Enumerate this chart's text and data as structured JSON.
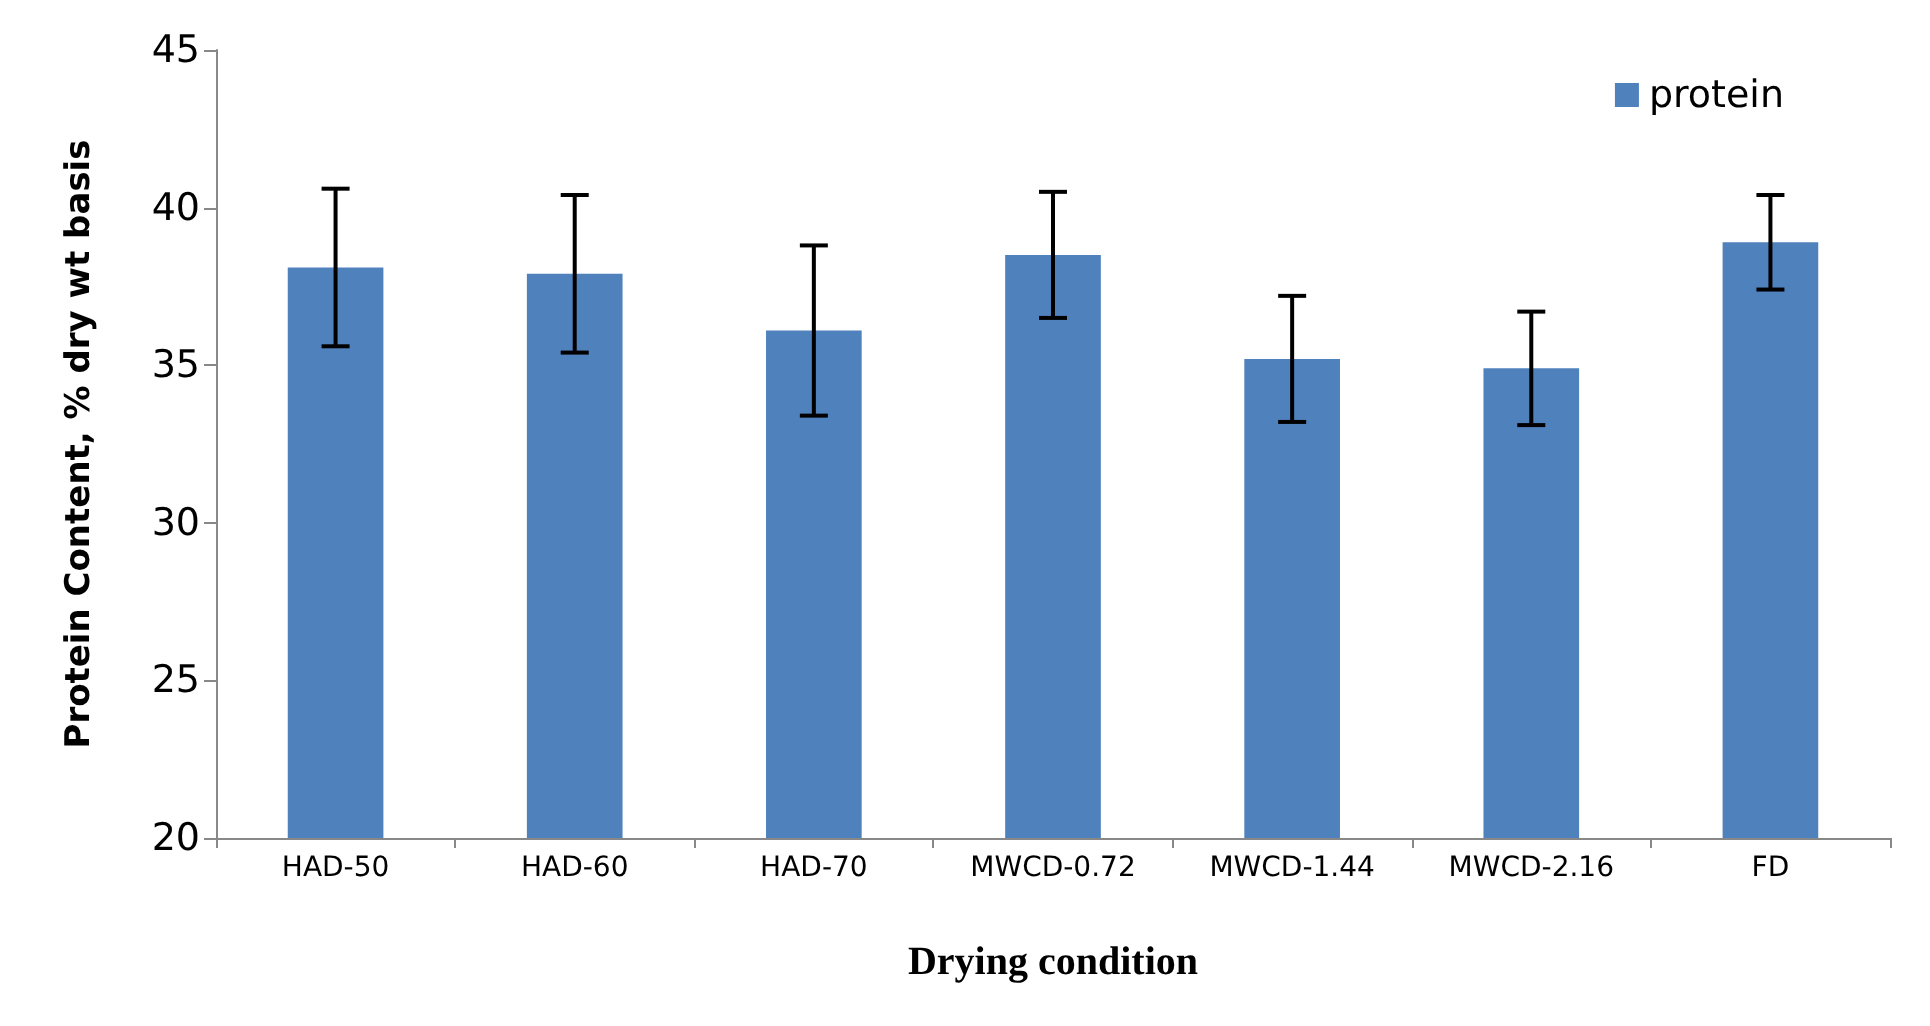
{
  "chart_data": {
    "type": "bar",
    "xlabel": "Drying condition",
    "ylabel": "Protein Content, % dry wt basis",
    "categories": [
      "HAD-50",
      "HAD-60",
      "HAD-70",
      "MWCD-0.72",
      "MWCD-1.44",
      "MWCD-2.16",
      "FD"
    ],
    "series": [
      {
        "name": "protein",
        "color": "#4f81bd",
        "values": [
          38.1,
          37.9,
          36.1,
          38.5,
          35.2,
          34.9,
          38.9
        ],
        "errors": [
          2.5,
          2.5,
          2.7,
          2.0,
          2.0,
          1.8,
          1.5
        ]
      }
    ],
    "ylim": [
      20,
      45
    ],
    "yticks": [
      20,
      25,
      30,
      35,
      40,
      45
    ],
    "grid": false,
    "legend": "top right"
  }
}
